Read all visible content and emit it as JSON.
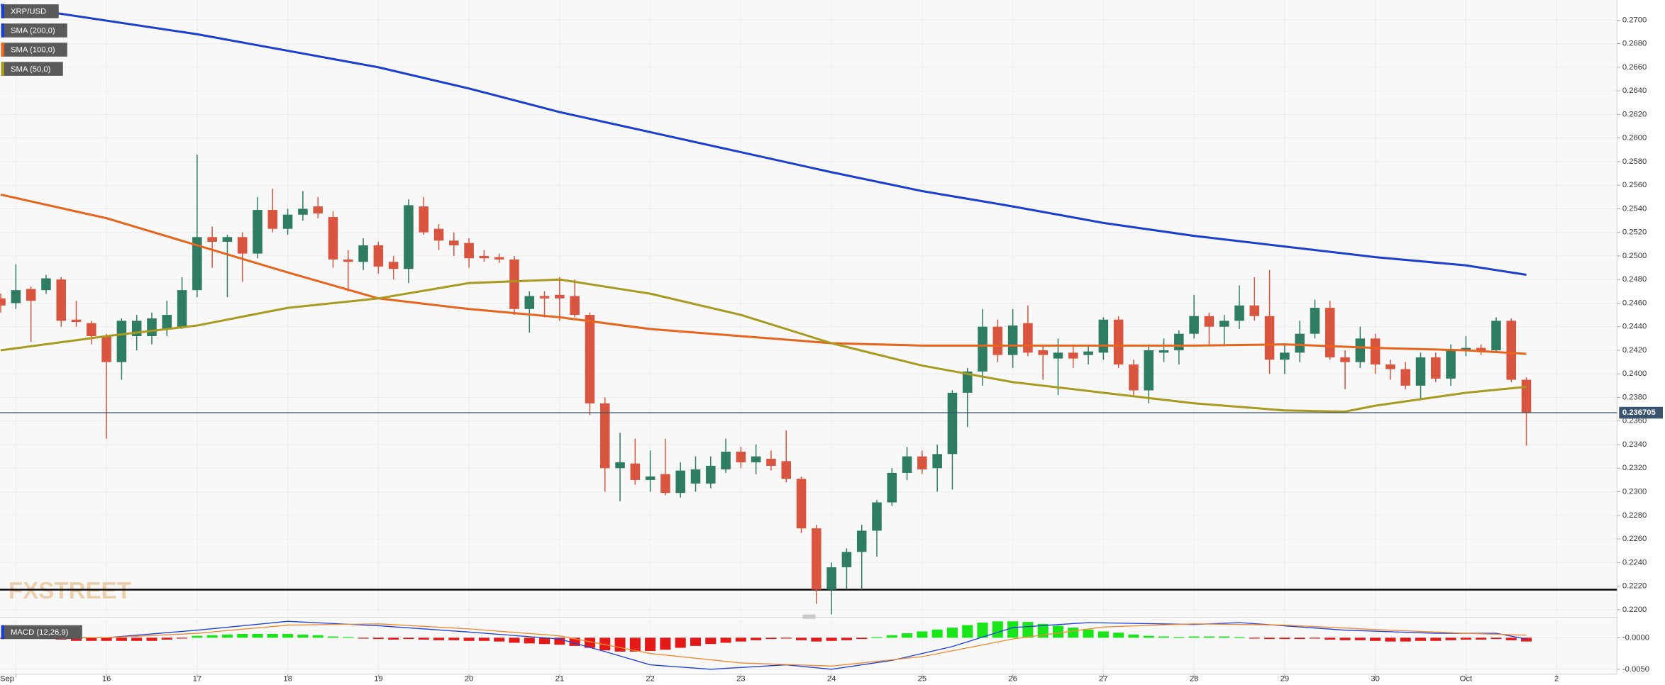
{
  "chart_data": [
    {
      "type": "candlestick",
      "name": "XRP/USD",
      "xlim": [
        -0.05,
        107
      ],
      "xticks": [
        {
          "value": 1,
          "label": "Sep"
        },
        {
          "value": 7,
          "label": "16"
        },
        {
          "value": 13,
          "label": "17"
        },
        {
          "value": 19,
          "label": "18"
        },
        {
          "value": 25,
          "label": "19"
        },
        {
          "value": 31,
          "label": "20"
        },
        {
          "value": 37,
          "label": "21"
        },
        {
          "value": 43,
          "label": "22"
        },
        {
          "value": 49,
          "label": "23"
        },
        {
          "value": 55,
          "label": "24"
        },
        {
          "value": 61,
          "label": "25"
        },
        {
          "value": 67,
          "label": "26"
        },
        {
          "value": 73,
          "label": "27"
        },
        {
          "value": 79,
          "label": "28"
        },
        {
          "value": 85,
          "label": "29"
        },
        {
          "value": 91,
          "label": "30"
        },
        {
          "value": 97,
          "label": "Oct"
        },
        {
          "value": 103,
          "label": "2"
        }
      ],
      "ylim": [
        0.2195,
        0.2717
      ],
      "yticks": [
        {
          "value": 0.22,
          "label": "0.2200"
        },
        {
          "value": 0.222,
          "label": "0.2220"
        },
        {
          "value": 0.224,
          "label": "0.2240"
        },
        {
          "value": 0.226,
          "label": "0.2260"
        },
        {
          "value": 0.228,
          "label": "0.2280"
        },
        {
          "value": 0.23,
          "label": "0.2300"
        },
        {
          "value": 0.232,
          "label": "0.2320"
        },
        {
          "value": 0.234,
          "label": "0.2340"
        },
        {
          "value": 0.236,
          "label": "0.2360"
        },
        {
          "value": 0.238,
          "label": "0.2380"
        },
        {
          "value": 0.24,
          "label": "0.2400"
        },
        {
          "value": 0.242,
          "label": "0.2420"
        },
        {
          "value": 0.244,
          "label": "0.2440"
        },
        {
          "value": 0.246,
          "label": "0.2460"
        },
        {
          "value": 0.248,
          "label": "0.2480"
        },
        {
          "value": 0.25,
          "label": "0.2500"
        },
        {
          "value": 0.252,
          "label": "0.2520"
        },
        {
          "value": 0.254,
          "label": "0.2540"
        },
        {
          "value": 0.256,
          "label": "0.2560"
        },
        {
          "value": 0.258,
          "label": "0.2580"
        },
        {
          "value": 0.26,
          "label": "0.2600"
        },
        {
          "value": 0.262,
          "label": "0.2620"
        },
        {
          "value": 0.264,
          "label": "0.2640"
        },
        {
          "value": 0.266,
          "label": "0.2660"
        },
        {
          "value": 0.268,
          "label": "0.2680"
        },
        {
          "value": 0.27,
          "label": "0.2700"
        }
      ],
      "grid": true,
      "legend_color": "#1a3fd0",
      "up_color": "#2e7d63",
      "down_color": "#d9553f",
      "candles": {
        "open": [
          0.2464,
          0.246,
          0.2472,
          0.2471,
          0.248,
          0.2446,
          0.2443,
          0.2432,
          0.241,
          0.2432,
          0.2432,
          0.2438,
          0.244,
          0.2471,
          0.2516,
          0.2512,
          0.2516,
          0.2502,
          0.2539,
          0.2523,
          0.2535,
          0.2542,
          0.2533,
          0.2497,
          0.2495,
          0.2509,
          0.2495,
          0.2489,
          0.2542,
          0.2523,
          0.2513,
          0.2511,
          0.25,
          0.2499,
          0.2497,
          0.2455,
          0.2466,
          0.2467,
          0.2466,
          0.245,
          0.2375,
          0.232,
          0.2324,
          0.231,
          0.2315,
          0.2299,
          0.2307,
          0.2307,
          0.2319,
          0.2334,
          0.2325,
          0.2328,
          0.2326,
          0.2311,
          0.2269,
          0.2217,
          0.2236,
          0.2249,
          0.2267,
          0.2291,
          0.2316,
          0.233,
          0.232,
          0.2332,
          0.2384,
          0.2402,
          0.244,
          0.2416,
          0.2443,
          0.242,
          0.2413,
          0.2418,
          0.2416,
          0.2418,
          0.2446,
          0.2408,
          0.2386,
          0.2418,
          0.242,
          0.2434,
          0.2449,
          0.244,
          0.2445,
          0.2458,
          0.2449,
          0.2412,
          0.2418,
          0.2434,
          0.2456,
          0.2414,
          0.241,
          0.243,
          0.2408,
          0.2404,
          0.239,
          0.2414,
          0.2396,
          0.242,
          0.2422,
          0.242,
          0.2445,
          0.2395
        ],
        "high": [
          0.2468,
          0.2493,
          0.2474,
          0.2484,
          0.2482,
          0.2462,
          0.2445,
          0.2434,
          0.2447,
          0.245,
          0.2452,
          0.2462,
          0.2482,
          0.2586,
          0.2525,
          0.2518,
          0.252,
          0.255,
          0.2557,
          0.254,
          0.2555,
          0.255,
          0.2538,
          0.2505,
          0.2515,
          0.2512,
          0.25,
          0.2548,
          0.255,
          0.2527,
          0.252,
          0.2515,
          0.2505,
          0.2502,
          0.25,
          0.247,
          0.247,
          0.2482,
          0.248,
          0.2452,
          0.238,
          0.235,
          0.2345,
          0.2335,
          0.2345,
          0.2325,
          0.233,
          0.233,
          0.2345,
          0.2338,
          0.234,
          0.2335,
          0.2352,
          0.2313,
          0.2272,
          0.224,
          0.2252,
          0.2272,
          0.2293,
          0.232,
          0.2338,
          0.2335,
          0.234,
          0.2386,
          0.2405,
          0.2455,
          0.2446,
          0.2455,
          0.2458,
          0.2425,
          0.243,
          0.2425,
          0.2425,
          0.2448,
          0.2449,
          0.2412,
          0.2425,
          0.243,
          0.2437,
          0.2467,
          0.2452,
          0.245,
          0.2475,
          0.2482,
          0.2488,
          0.2425,
          0.2445,
          0.2463,
          0.2462,
          0.242,
          0.244,
          0.2434,
          0.2412,
          0.241,
          0.2418,
          0.2418,
          0.2425,
          0.2432,
          0.2425,
          0.2448,
          0.2447,
          0.2397
        ],
        "low": [
          0.2452,
          0.2455,
          0.2427,
          0.2468,
          0.244,
          0.244,
          0.2425,
          0.2345,
          0.2395,
          0.242,
          0.2425,
          0.2432,
          0.2438,
          0.2465,
          0.249,
          0.2465,
          0.2478,
          0.2498,
          0.252,
          0.2518,
          0.253,
          0.2532,
          0.249,
          0.247,
          0.2488,
          0.2485,
          0.248,
          0.2477,
          0.2518,
          0.2505,
          0.25,
          0.249,
          0.2495,
          0.2494,
          0.245,
          0.2435,
          0.2448,
          0.2445,
          0.2448,
          0.2365,
          0.23,
          0.2292,
          0.2306,
          0.23,
          0.2297,
          0.2295,
          0.23,
          0.2303,
          0.2316,
          0.232,
          0.2315,
          0.2318,
          0.2308,
          0.2265,
          0.2205,
          0.2196,
          0.2218,
          0.2218,
          0.2245,
          0.2288,
          0.231,
          0.2315,
          0.23,
          0.2302,
          0.2355,
          0.239,
          0.241,
          0.2405,
          0.2415,
          0.2395,
          0.2382,
          0.2405,
          0.2408,
          0.2412,
          0.2405,
          0.2382,
          0.2375,
          0.241,
          0.2408,
          0.243,
          0.2425,
          0.2425,
          0.2438,
          0.2445,
          0.24,
          0.24,
          0.241,
          0.243,
          0.2412,
          0.2387,
          0.2405,
          0.24,
          0.2395,
          0.2387,
          0.2378,
          0.2393,
          0.239,
          0.2415,
          0.2416,
          0.2418,
          0.2393,
          0.2339
        ],
        "close": [
          0.2458,
          0.2471,
          0.2462,
          0.2481,
          0.2445,
          0.2444,
          0.2432,
          0.241,
          0.2445,
          0.2445,
          0.2447,
          0.245,
          0.2471,
          0.2516,
          0.2512,
          0.2516,
          0.2502,
          0.2539,
          0.2523,
          0.2535,
          0.254,
          0.2536,
          0.2497,
          0.2495,
          0.2509,
          0.2491,
          0.2489,
          0.2543,
          0.252,
          0.2513,
          0.2509,
          0.2498,
          0.2498,
          0.2497,
          0.2455,
          0.2466,
          0.2464,
          0.2464,
          0.245,
          0.2375,
          0.232,
          0.2325,
          0.231,
          0.2313,
          0.2299,
          0.2318,
          0.2319,
          0.2322,
          0.2334,
          0.2325,
          0.233,
          0.2322,
          0.2311,
          0.2269,
          0.2217,
          0.2236,
          0.2249,
          0.2267,
          0.2291,
          0.2316,
          0.233,
          0.2319,
          0.2332,
          0.2384,
          0.2402,
          0.244,
          0.2416,
          0.2441,
          0.2418,
          0.2416,
          0.2418,
          0.2413,
          0.2419,
          0.2446,
          0.2408,
          0.2386,
          0.242,
          0.242,
          0.2434,
          0.2449,
          0.244,
          0.2445,
          0.2458,
          0.2449,
          0.2412,
          0.2418,
          0.2434,
          0.2456,
          0.2414,
          0.241,
          0.243,
          0.2408,
          0.2404,
          0.239,
          0.2414,
          0.2396,
          0.242,
          0.2422,
          0.2419,
          0.2445,
          0.2395,
          0.2367
        ]
      },
      "overlays": [
        {
          "name": "SMA (200,0)",
          "color": "#1a3fd0",
          "x": [
            0,
            13,
            19,
            25,
            31,
            37,
            43,
            49,
            55,
            61,
            67,
            73,
            79,
            85,
            91,
            97,
            101
          ],
          "values": [
            0.2713,
            0.2688,
            0.2674,
            0.266,
            0.2642,
            0.2622,
            0.2605,
            0.2588,
            0.2571,
            0.2555,
            0.2542,
            0.2528,
            0.2517,
            0.2508,
            0.2499,
            0.2492,
            0.2484
          ]
        },
        {
          "name": "SMA (100,0)",
          "color": "#e8641c",
          "x": [
            0,
            7,
            13,
            19,
            25,
            31,
            37,
            43,
            49,
            55,
            61,
            67,
            73,
            79,
            85,
            91,
            97,
            101
          ],
          "values": [
            0.2552,
            0.2532,
            0.2509,
            0.2486,
            0.2464,
            0.2455,
            0.2448,
            0.2438,
            0.2432,
            0.2426,
            0.2424,
            0.2424,
            0.2424,
            0.2424,
            0.2425,
            0.2422,
            0.242,
            0.2417
          ]
        },
        {
          "name": "SMA (50,0)",
          "color": "#a89a1e",
          "x": [
            0,
            7,
            13,
            19,
            25,
            31,
            37,
            43,
            49,
            55,
            61,
            67,
            73,
            79,
            85,
            89,
            91,
            97,
            101
          ],
          "values": [
            0.242,
            0.2432,
            0.2441,
            0.2456,
            0.2464,
            0.2477,
            0.248,
            0.2468,
            0.245,
            0.2426,
            0.2407,
            0.2393,
            0.2384,
            0.2375,
            0.2369,
            0.2368,
            0.2373,
            0.2384,
            0.2389
          ]
        }
      ],
      "last_price": 0.236705,
      "last_price_color": "#3a5470",
      "support_level": 0.2217,
      "watermark": "FXSTREET"
    },
    {
      "type": "macd",
      "name": "MACD (12,26,9)",
      "legend_color": "#1a3fd0",
      "ylim": [
        -0.0058,
        0.003
      ],
      "yticks": [
        {
          "value": 0,
          "label": "-0.0000"
        },
        {
          "value": -0.005,
          "label": "-0.0050"
        }
      ],
      "histogram": {
        "positive_color": "#19e619",
        "negative_color": "#e61919",
        "values": [
          -0.0001,
          -0.0001,
          -0.0001,
          -0.0002,
          -0.0003,
          -0.0005,
          -0.0005,
          -0.0005,
          -0.0005,
          -0.0005,
          -0.0005,
          -0.0003,
          -0.0001,
          0.0003,
          0.0004,
          0.0005,
          0.0006,
          0.0006,
          0.0006,
          0.0006,
          0.0005,
          0.0004,
          0.0002,
          0.0001,
          -0.0001,
          -0.0002,
          -0.0003,
          -0.0002,
          -0.0003,
          -0.0004,
          -0.0004,
          -0.0005,
          -0.0005,
          -0.0006,
          -0.0008,
          -0.0009,
          -0.001,
          -0.0011,
          -0.0013,
          -0.0016,
          -0.002,
          -0.0022,
          -0.0022,
          -0.0021,
          -0.0019,
          -0.0016,
          -0.0013,
          -0.001,
          -0.0008,
          -0.0006,
          -0.0004,
          -0.0002,
          -0.0001,
          -0.0004,
          -0.0006,
          -0.0005,
          -0.0004,
          -0.0002,
          0.0001,
          0.0004,
          0.0007,
          0.001,
          0.0013,
          0.0016,
          0.002,
          0.0024,
          0.0026,
          0.0026,
          0.0025,
          0.0022,
          0.0019,
          0.0016,
          0.0013,
          0.001,
          0.0008,
          0.0005,
          0.0003,
          0.0002,
          0.0001,
          0.0002,
          0.0002,
          0.0002,
          0.0001,
          -0.0001,
          -0.0002,
          -0.0002,
          -0.0002,
          -0.0001,
          -0.0003,
          -0.0004,
          -0.0004,
          -0.0005,
          -0.0006,
          -0.0006,
          -0.0005,
          -0.0005,
          -0.0004,
          -0.0003,
          -0.0003,
          -0.0002,
          -0.0004,
          -0.0006
        ]
      },
      "series": [
        {
          "color": "#2040e0",
          "x": [
            0,
            7,
            13,
            19,
            25,
            31,
            37,
            40,
            43,
            47,
            52,
            55,
            59,
            63,
            67,
            72,
            79,
            82,
            89,
            95,
            99,
            101
          ],
          "values": [
            0,
            0,
            0.0012,
            0.0026,
            0.0019,
            0.0009,
            -0.0002,
            -0.0022,
            -0.0043,
            -0.005,
            -0.0043,
            -0.005,
            -0.0036,
            -0.0014,
            0.0016,
            0.0024,
            0.0021,
            0.0024,
            0.0012,
            0.0007,
            0.0007,
            -0.0002
          ]
        },
        {
          "color": "#f08a30",
          "x": [
            0,
            7,
            13,
            19,
            25,
            31,
            37,
            43,
            49,
            55,
            61,
            67,
            73,
            79,
            85,
            91,
            97,
            101
          ],
          "values": [
            0,
            0,
            0.0007,
            0.002,
            0.0022,
            0.0014,
            0.0003,
            -0.0025,
            -0.004,
            -0.0045,
            -0.003,
            -0.0002,
            0.0017,
            0.0022,
            0.002,
            0.0013,
            0.0007,
            0.0004
          ]
        }
      ]
    }
  ]
}
